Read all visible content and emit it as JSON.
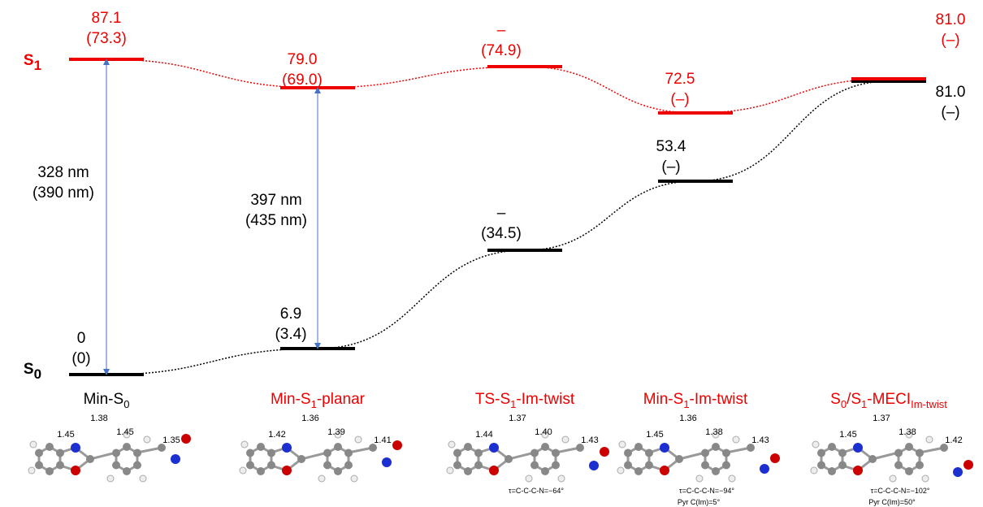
{
  "levels": {
    "s1": {
      "label": "S",
      "sub": "1"
    },
    "s0": {
      "label": "S",
      "sub": "0"
    }
  },
  "columns": [
    {
      "name": [
        "Min-S",
        "0"
      ],
      "s1": [
        "87.1",
        "(73.3)"
      ],
      "s0": [
        "0",
        "(0)"
      ],
      "transition": [
        "328 nm",
        "(390 nm)"
      ],
      "bonds": [
        "1.45",
        "1.38",
        "1.45",
        "1.35"
      ],
      "notes": []
    },
    {
      "name": [
        "Min-S",
        "1",
        "-planar"
      ],
      "s1": [
        "79.0",
        "(69.0)"
      ],
      "s0": [
        "6.9",
        "(3.4)"
      ],
      "transition": [
        "397 nm",
        "(435 nm)"
      ],
      "bonds": [
        "1.42",
        "1.36",
        "1.39",
        "1.41"
      ],
      "notes": []
    },
    {
      "name": [
        "TS-S",
        "1",
        "-Im-twist"
      ],
      "s1": [
        "–",
        "(74.9)"
      ],
      "s0": [
        "–",
        "(34.5)"
      ],
      "bonds": [
        "1.44",
        "1.37",
        "1.40",
        "1.43"
      ],
      "notes": [
        "τ=C-C-C-N=−64°"
      ]
    },
    {
      "name": [
        "Min-S",
        "1",
        "-Im-twist"
      ],
      "s1": [
        "72.5",
        "(–)"
      ],
      "s0": [
        "53.4",
        "(–)"
      ],
      "bonds": [
        "1.45",
        "1.36",
        "1.38",
        "1.43"
      ],
      "notes": [
        "τ=C-C-C-N=−94°",
        "Pyr C(Im)=5°"
      ]
    },
    {
      "name": [
        "S",
        "0",
        "/S",
        "1",
        "-MECI",
        "Im-twist"
      ],
      "s1": [
        "81.0",
        "(–)"
      ],
      "s0": [
        "81.0",
        "(–)"
      ],
      "bonds": [
        "1.45",
        "1.37",
        "1.38",
        "1.42"
      ],
      "notes": [
        "τ=C-C-C-N=−102°",
        "Pyr C(Im)=50°"
      ]
    }
  ]
}
